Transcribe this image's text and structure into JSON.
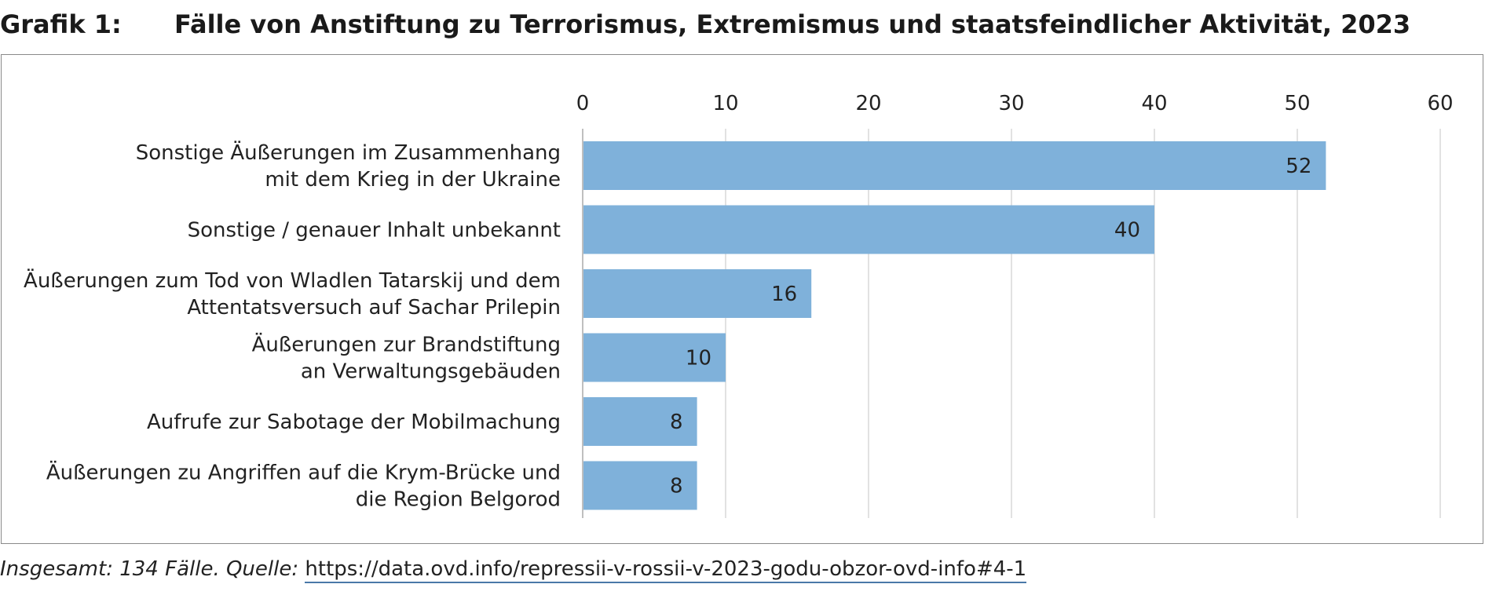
{
  "header": {
    "figure_number": "Grafik 1:",
    "title": "Fälle von Anstiftung zu Terrorismus, Extremismus und staatsfeindlicher Aktivität, 2023"
  },
  "footer": {
    "note": "Insgesamt: 134 Fälle. Quelle:",
    "url": "https://data.ovd.info/repressii-v-rossii-v-2023-godu-obzor-ovd-info#4-1"
  },
  "colors": {
    "bar": "#7fb1da",
    "grid": "#d9d9d9",
    "axis": "#bfbfbf",
    "link_underline": "#4a78a8"
  },
  "chart_data": {
    "type": "bar",
    "orientation": "horizontal",
    "categories": [
      [
        "Sonstige Äußerungen im Zusammenhang",
        "mit dem Krieg in der Ukraine"
      ],
      [
        "Sonstige / genauer Inhalt unbekannt"
      ],
      [
        "Äußerungen zum Tod von Wladlen Tatarskij und dem",
        "Attentatsversuch auf Sachar Prilepin"
      ],
      [
        "Äußerungen zur Brandstiftung",
        "an Verwaltungsgebäuden"
      ],
      [
        "Aufrufe zur Sabotage der Mobilmachung"
      ],
      [
        "Äußerungen zu Angriffen auf die Krym-Brücke und",
        "die Region Belgorod"
      ]
    ],
    "values": [
      52,
      40,
      16,
      10,
      8,
      8
    ],
    "xlim": [
      0,
      60
    ],
    "xticks": [
      0,
      10,
      20,
      30,
      40,
      50,
      60
    ],
    "x_axis_position": "top",
    "grid": true,
    "data_labels": true,
    "title": "",
    "xlabel": "",
    "ylabel": ""
  }
}
